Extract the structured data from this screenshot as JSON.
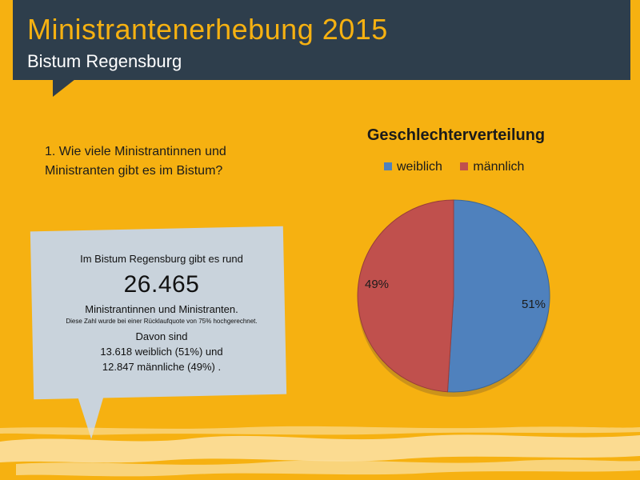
{
  "header": {
    "title": "Ministrantenerhebung 2015",
    "subtitle": "Bistum Regensburg"
  },
  "question": "1. Wie viele Ministrantinnen und Ministranten gibt es im Bistum?",
  "callout": {
    "line1": "Im Bistum Regensburg gibt es rund",
    "big_number": "26.465",
    "line2": "Ministrantinnen und Ministranten.",
    "note": "Diese Zahl wurde bei einer Rücklaufquote von 75% hochgerechnet.",
    "line3": "Davon sind",
    "line4": "13.618 weiblich (51%) und",
    "line5": "12.847 männliche (49%) ."
  },
  "chart_data": {
    "type": "pie",
    "title": "Geschlechterverteilung",
    "legend_position": "top",
    "categories": [
      "weiblich",
      "männlich"
    ],
    "values": [
      51,
      49
    ],
    "labels": [
      "51%",
      "49%"
    ],
    "colors": [
      "#4f81bd",
      "#c0504d"
    ]
  }
}
